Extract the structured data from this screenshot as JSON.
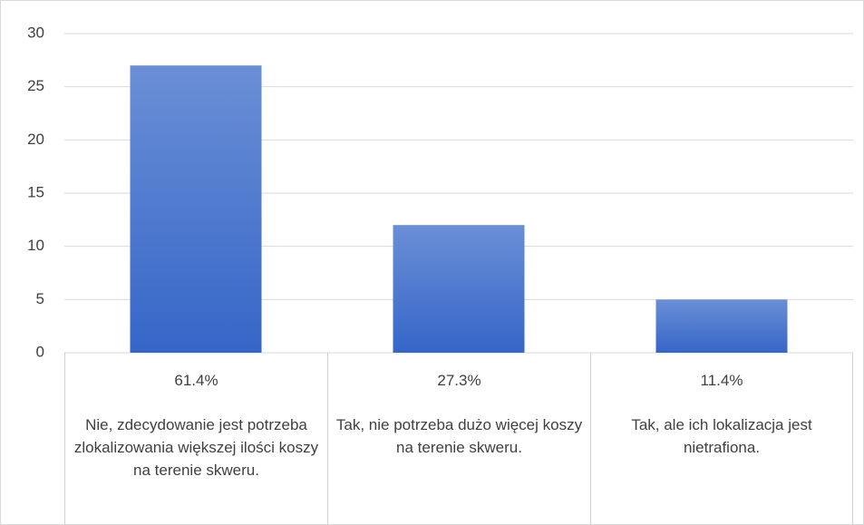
{
  "chart_data": {
    "type": "bar",
    "categories": [
      "Nie, zdecydowanie jest potrzeba zlokalizowania większej ilości koszy na terenie skweru.",
      "Tak, nie potrzeba dużo więcej koszy na terenie skweru.",
      "Tak, ale ich lokalizacja jest nietrafiona."
    ],
    "values": [
      27,
      12,
      5
    ],
    "table_row": [
      "61.4%",
      "27.3%",
      "11.4%"
    ],
    "color": "#4472c4",
    "ylim": [
      0,
      30
    ],
    "yticks": [
      0,
      5,
      10,
      15,
      20,
      25,
      30
    ],
    "grid": true
  }
}
